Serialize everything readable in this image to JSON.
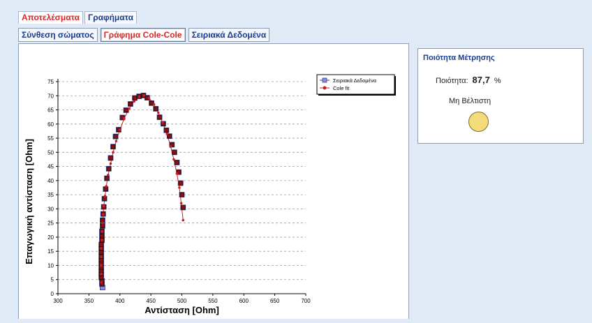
{
  "tabs_main": [
    "Αποτελέσματα",
    "Γραφήματα"
  ],
  "tabs_sub": [
    "Σύνθεση σώματος",
    "Γράφημα Cole-Cole",
    "Σειριακά Δεδομένα"
  ],
  "quality": {
    "title": "Ποιότητα Μέτρησης",
    "label": "Ποιότητα:",
    "value": "87,7",
    "unit": "%",
    "status": "Μη Βέλτιστη",
    "lamp_color": "#f2dc7a"
  },
  "chart_data": {
    "type": "scatter",
    "xlabel": "Αντίσταση [Ohm]",
    "ylabel": "Επαγωγική αντίσταση [Ohm]",
    "xlim": [
      300,
      700
    ],
    "ylim": [
      0,
      75
    ],
    "xticks": [
      300,
      350,
      400,
      450,
      500,
      550,
      600,
      650,
      700
    ],
    "yticks": [
      0,
      5,
      10,
      15,
      20,
      25,
      30,
      35,
      40,
      45,
      50,
      55,
      60,
      65,
      70,
      75
    ],
    "grid": true,
    "legend_position": "top-right",
    "series": [
      {
        "name": "Σειριακά Δεδομένα",
        "color": "#8d8ddc",
        "marker": "square",
        "x": [
          372,
          371,
          371,
          370,
          370,
          370,
          370,
          370,
          370,
          370,
          370,
          370,
          370,
          371,
          371,
          371,
          372,
          372,
          373,
          374,
          375,
          377,
          379,
          382,
          385,
          389,
          393,
          398,
          404,
          410,
          417,
          424,
          431,
          438,
          444,
          451,
          458,
          464,
          470,
          475,
          480,
          484,
          488,
          492,
          495,
          498,
          500,
          502
        ],
        "y": [
          2.2,
          3.4,
          4.5,
          5.7,
          7.0,
          8.1,
          9.3,
          10.6,
          11.9,
          13.2,
          14.6,
          16.0,
          17.4,
          18.9,
          20.4,
          22.1,
          24.0,
          26.0,
          28.2,
          30.7,
          33.6,
          37.0,
          40.8,
          44.2,
          48.0,
          52.0,
          55.6,
          58.0,
          62.3,
          64.9,
          67.1,
          69.2,
          69.8,
          70.1,
          69.3,
          67.4,
          65.4,
          62.4,
          60.1,
          57.8,
          55.7,
          52.7,
          50.0,
          46.4,
          43.0,
          39.1,
          35.0,
          30.5
        ]
      },
      {
        "name": "Cole fit",
        "color": "#cc1f1f",
        "marker": "circle",
        "x": [
          370,
          370,
          370,
          370,
          370,
          371,
          371,
          372,
          373,
          374,
          376,
          378,
          381,
          385,
          389,
          394,
          400,
          407,
          415,
          423,
          431,
          439,
          447,
          455,
          462,
          469,
          476,
          482,
          487,
          492,
          496,
          499,
          502
        ],
        "y": [
          4.0,
          7.0,
          10.0,
          13.0,
          16.0,
          19.0,
          22.0,
          25.0,
          28.0,
          31.0,
          34.5,
          38.0,
          42.0,
          46.0,
          50.0,
          54.0,
          58.0,
          62.0,
          65.5,
          68.0,
          69.6,
          70.1,
          69.2,
          67.0,
          64.0,
          60.5,
          56.5,
          52.0,
          47.5,
          42.5,
          37.5,
          32.0,
          26.0
        ]
      }
    ]
  }
}
